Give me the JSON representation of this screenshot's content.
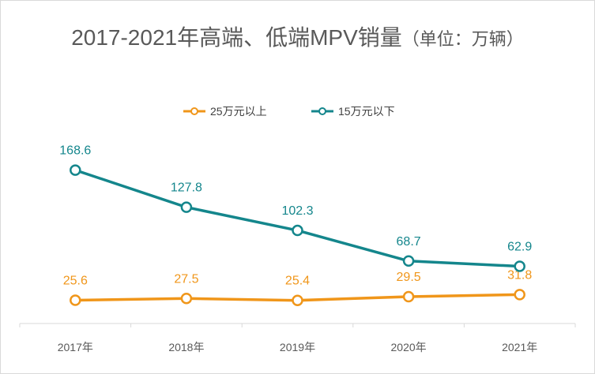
{
  "chart_data": {
    "type": "line",
    "title": "2017-2021年高端、低端MPV销量",
    "title_unit": "（单位：万辆）",
    "categories": [
      "2017年",
      "2018年",
      "2019年",
      "2020年",
      "2021年"
    ],
    "series": [
      {
        "name": "25万元以上",
        "color": "#f0961a",
        "values": [
          25.6,
          27.5,
          25.4,
          29.5,
          31.8
        ]
      },
      {
        "name": "15万元以下",
        "color": "#14868c",
        "values": [
          168.6,
          127.8,
          102.3,
          68.7,
          62.9
        ]
      }
    ],
    "ylim": [
      0,
      230
    ],
    "grid": false,
    "legend_position": "top"
  }
}
